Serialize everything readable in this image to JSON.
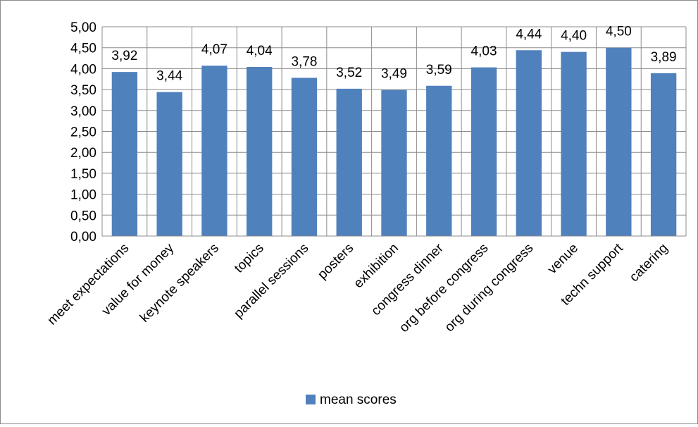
{
  "chart_data": {
    "type": "bar",
    "categories": [
      "meet expectations",
      "value for money",
      "keynote speakers",
      "topics",
      "parallel sessions",
      "posters",
      "exhibition",
      "congress dinner",
      "org before congress",
      "org during congress",
      "venue",
      "techn support",
      "catering"
    ],
    "series": [
      {
        "name": "mean scores",
        "values": [
          3.92,
          3.44,
          4.07,
          4.04,
          3.78,
          3.52,
          3.49,
          3.59,
          4.03,
          4.44,
          4.4,
          4.5,
          3.89
        ]
      }
    ],
    "data_labels": [
      "3,92",
      "3,44",
      "4,07",
      "4,04",
      "3,78",
      "3,52",
      "3,49",
      "3,59",
      "4,03",
      "4,44",
      "4,40",
      "4,50",
      "3,89"
    ],
    "y_tick_labels": [
      "0,00",
      "0,50",
      "1,00",
      "1,50",
      "2,00",
      "2,50",
      "3,00",
      "3,50",
      "4,00",
      "4,50",
      "5,00"
    ],
    "ylim": [
      0,
      5
    ],
    "y_step": 0.5,
    "title": "",
    "xlabel": "",
    "ylabel": "",
    "grid": true,
    "legend_position": "bottom",
    "colors": {
      "bar": "#4f81bd",
      "grid": "#8c8c8c",
      "axis": "#8c8c8c"
    }
  }
}
